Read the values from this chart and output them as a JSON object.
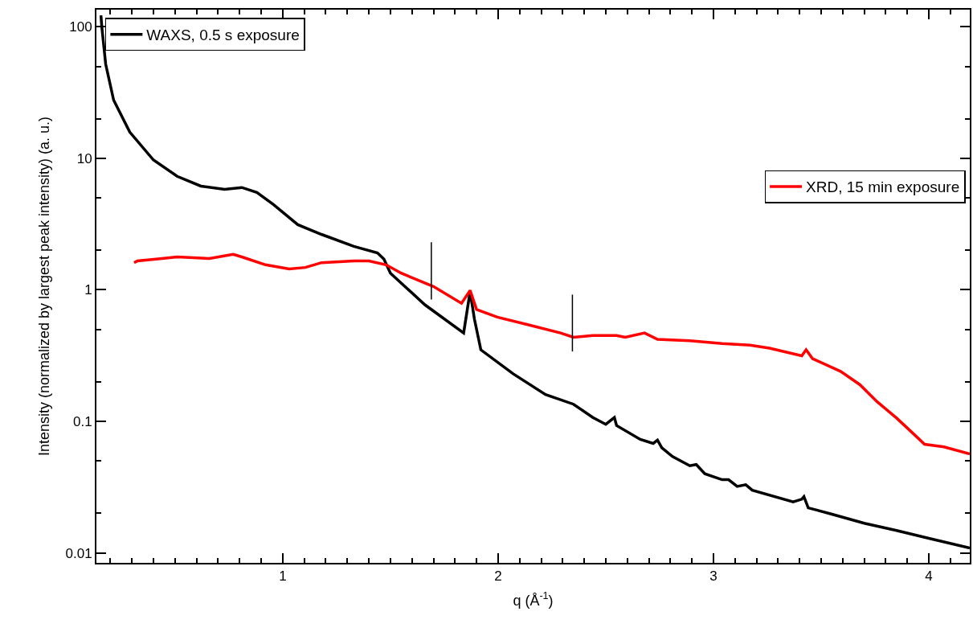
{
  "chart_data": {
    "type": "line",
    "xlabel": "q (Å$^{-1}$)",
    "ylabel": "Intensity (normalized by largest peak intensity) (a. u.)",
    "xlim": [
      0.135,
      4.19
    ],
    "ylim": [
      0.0084,
      135
    ],
    "log": "y",
    "xticks": [
      1,
      2,
      3,
      4
    ],
    "yticks": [
      0.01,
      0.1,
      1,
      10,
      100
    ],
    "legend": [
      "top left",
      "right"
    ],
    "marker": "none",
    "line_style": "solid",
    "series": [
      {
        "name": "WAXS, 0.5 s exposure",
        "color": "#000000",
        "x": [
          0.156,
          0.16,
          0.178,
          0.215,
          0.29,
          0.4,
          0.51,
          0.62,
          0.73,
          0.81,
          0.88,
          0.957,
          1.07,
          1.18,
          1.33,
          1.44,
          1.47,
          1.5,
          1.66,
          1.84,
          1.87,
          1.89,
          1.92,
          2.07,
          2.22,
          2.35,
          2.44,
          2.5,
          2.54,
          2.55,
          2.66,
          2.72,
          2.74,
          2.76,
          2.81,
          2.89,
          2.92,
          2.96,
          3.04,
          3.07,
          3.11,
          3.15,
          3.18,
          3.37,
          3.41,
          3.42,
          3.44,
          3.55,
          3.7,
          3.85,
          4.0,
          4.19
        ],
        "values": [
          122,
          100,
          52,
          27.7,
          15.8,
          9.7,
          7.3,
          6.15,
          5.8,
          6.0,
          5.5,
          4.45,
          3.13,
          2.64,
          2.14,
          1.91,
          1.71,
          1.34,
          0.77,
          0.47,
          0.97,
          0.6,
          0.35,
          0.23,
          0.16,
          0.135,
          0.107,
          0.095,
          0.107,
          0.093,
          0.073,
          0.068,
          0.072,
          0.063,
          0.054,
          0.046,
          0.047,
          0.04,
          0.036,
          0.036,
          0.032,
          0.033,
          0.03,
          0.0244,
          0.0256,
          0.0268,
          0.022,
          0.0197,
          0.0168,
          0.0148,
          0.0129,
          0.0109
        ]
      },
      {
        "name": "XRD, 15 min exposure",
        "color": "#ff0000",
        "x": [
          0.31,
          0.326,
          0.44,
          0.51,
          0.66,
          0.77,
          0.81,
          0.92,
          1.03,
          1.105,
          1.18,
          1.33,
          1.4,
          1.48,
          1.55,
          1.7,
          1.83,
          1.87,
          1.9,
          1.996,
          2.145,
          2.29,
          2.35,
          2.44,
          2.55,
          2.59,
          2.68,
          2.74,
          2.89,
          3.04,
          3.17,
          3.26,
          3.41,
          3.43,
          3.46,
          3.59,
          3.68,
          3.76,
          3.85,
          3.93,
          3.98,
          4.07,
          4.19
        ],
        "values": [
          1.61,
          1.66,
          1.73,
          1.78,
          1.73,
          1.86,
          1.78,
          1.55,
          1.44,
          1.48,
          1.61,
          1.66,
          1.66,
          1.55,
          1.34,
          1.06,
          0.79,
          0.99,
          0.71,
          0.62,
          0.54,
          0.47,
          0.436,
          0.45,
          0.45,
          0.436,
          0.47,
          0.42,
          0.41,
          0.39,
          0.38,
          0.36,
          0.315,
          0.35,
          0.3,
          0.24,
          0.19,
          0.141,
          0.106,
          0.08,
          0.067,
          0.064,
          0.0565
        ]
      },
      {
        "color": "#000000",
        "x": [
          1.69,
          1.69
        ],
        "values": [
          0.845,
          2.3
        ]
      },
      {
        "color": "#000000",
        "x": [
          2.345,
          2.345
        ],
        "values": [
          0.34,
          0.92
        ]
      }
    ]
  }
}
